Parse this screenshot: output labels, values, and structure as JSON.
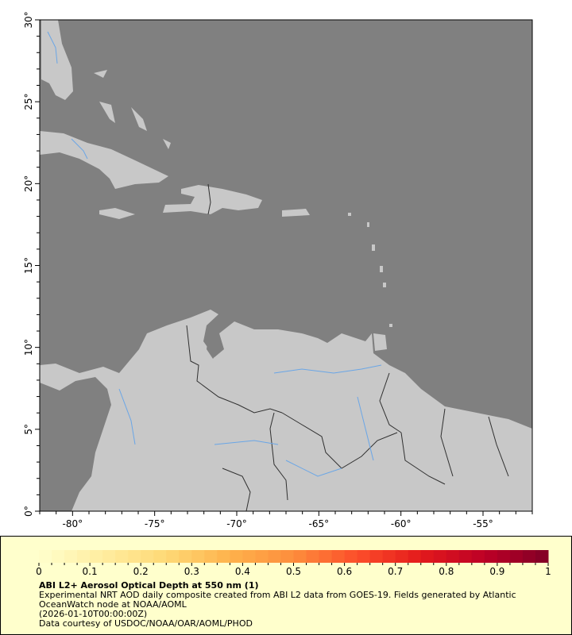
{
  "map": {
    "lon_range": [
      -82,
      -52
    ],
    "lat_range": [
      0,
      30
    ],
    "ocean_color": "#808080",
    "land_color": "#c8c8c8",
    "border_color": "#505050",
    "river_color": "#6aa6e6",
    "lat_ticks": [
      "0°",
      "5°",
      "10°",
      "15°",
      "20°",
      "25°",
      "30°"
    ],
    "lon_ticks": [
      "-80°",
      "-75°",
      "-70°",
      "-65°",
      "-60°",
      "-55°"
    ]
  },
  "colorbar": {
    "min": 0,
    "max": 1,
    "tick_labels": [
      "0",
      "0.1",
      "0.2",
      "0.3",
      "0.4",
      "0.5",
      "0.6",
      "0.7",
      "0.8",
      "0.9",
      "1"
    ],
    "colors": [
      "#ffffcc",
      "#ffeda0",
      "#fed976",
      "#feb24c",
      "#fd8d3c",
      "#fc4e2a",
      "#e31a1c",
      "#bd0026",
      "#800026"
    ]
  },
  "legend": {
    "title": "ABI L2+ Aerosol Optical Depth at 550 nm (1)",
    "line1": "Experimental NRT AOD daily composite created from ABI L2 data from GOES-19. Fields generated by Atlantic",
    "line2": "OceanWatch node at NOAA/AOML",
    "line3": "(2026-01-10T00:00:00Z)",
    "line4": "Data courtesy of USDOC/NOAA/OAR/AOML/PHOD"
  }
}
